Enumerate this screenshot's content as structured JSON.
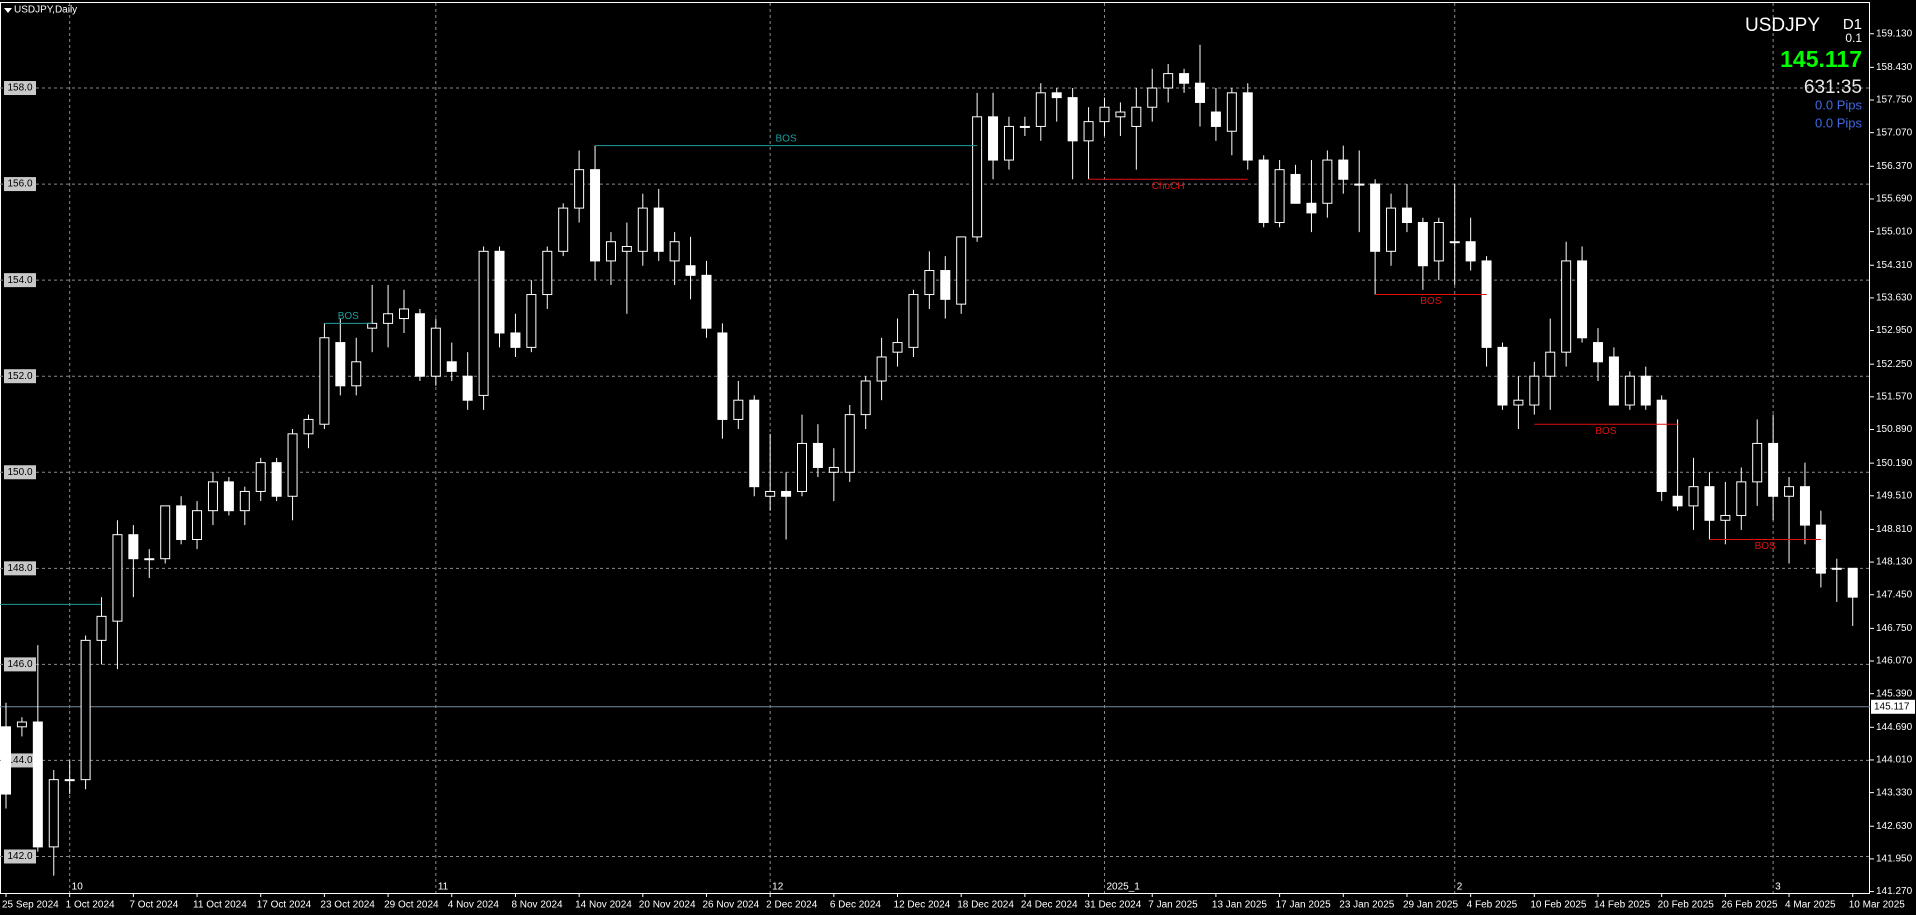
{
  "chart_data": {
    "type": "candlestick",
    "title": "USDJPY,Daily",
    "symbol": "USDJPY",
    "timeframe": "D1",
    "spread": "0.1",
    "current_price": 145.117,
    "timer": "631:35",
    "pips": [
      "0.0 Pips",
      "0.0 Pips"
    ],
    "categories": [
      "25 Sep 2024",
      null,
      null,
      null,
      "1 Oct 2024",
      null,
      null,
      null,
      "7 Oct 2024",
      null,
      null,
      null,
      "11 Oct 2024",
      null,
      null,
      null,
      "17 Oct 2024",
      null,
      null,
      null,
      "23 Oct 2024",
      null,
      null,
      null,
      "29 Oct 2024",
      null,
      null,
      null,
      "4 Nov 2024",
      null,
      null,
      null,
      "8 Nov 2024",
      null,
      null,
      null,
      "14 Nov 2024",
      null,
      null,
      null,
      "20 Nov 2024",
      null,
      null,
      null,
      "26 Nov 2024",
      null,
      null,
      null,
      "2 Dec 2024",
      null,
      null,
      null,
      "6 Dec 2024",
      null,
      null,
      null,
      "12 Dec 2024",
      null,
      null,
      null,
      "18 Dec 2024",
      null,
      null,
      null,
      "24 Dec 2024",
      null,
      null,
      null,
      "31 Dec 2024",
      null,
      null,
      null,
      "7 Jan 2025",
      null,
      null,
      null,
      "13 Jan 2025",
      null,
      null,
      null,
      "17 Jan 2025",
      null,
      null,
      null,
      "23 Jan 2025",
      null,
      null,
      null,
      "29 Jan 2025",
      null,
      null,
      null,
      "4 Feb 2025",
      null,
      null,
      null,
      "10 Feb 2025",
      null,
      null,
      null,
      "14 Feb 2025",
      null,
      null,
      null,
      "20 Feb 2025",
      null,
      null,
      null,
      "26 Feb 2025",
      null,
      null,
      null,
      "4 Mar 2025",
      null,
      null,
      null,
      "10 Mar 2025"
    ],
    "open": [
      144.7,
      144.7,
      144.8,
      142.2,
      143.6,
      143.6,
      146.5,
      146.9,
      148.7,
      148.2,
      148.2,
      149.3,
      148.6,
      149.2,
      149.8,
      149.2,
      149.6,
      150.2,
      149.5,
      150.8,
      151.0,
      152.7,
      151.8,
      153.0,
      153.1,
      153.2,
      153.3,
      152.0,
      152.3,
      152.0,
      151.6,
      154.6,
      152.9,
      152.6,
      153.7,
      154.6,
      155.5,
      156.3,
      154.4,
      154.6,
      154.6,
      155.5,
      154.4,
      154.3,
      154.1,
      152.9,
      151.1,
      151.5,
      149.5,
      149.6,
      149.6,
      150.6,
      150.0,
      150.0,
      151.2,
      151.9,
      152.5,
      152.6,
      153.7,
      154.2,
      153.5,
      154.9,
      157.4,
      156.5,
      157.2,
      157.2,
      157.9,
      157.8,
      156.9,
      157.3,
      157.4,
      157.2,
      157.6,
      158.0,
      158.3,
      158.1,
      157.5,
      157.1,
      157.9,
      156.5,
      155.2,
      156.2,
      155.6,
      155.6,
      156.5,
      156.0,
      156.0,
      154.6,
      155.5,
      155.2,
      154.4,
      154.8,
      154.8,
      154.4,
      152.6,
      151.4,
      151.4,
      152.0,
      152.5,
      154.4,
      152.7,
      152.4,
      151.4,
      152.0,
      151.5,
      149.5,
      149.3,
      149.7,
      149.0,
      149.1,
      149.8,
      150.6,
      149.5,
      149.7,
      148.9,
      148.0,
      148.0
    ],
    "high": [
      145.2,
      144.9,
      146.4,
      143.8,
      144.0,
      146.6,
      147.4,
      149.0,
      148.9,
      148.4,
      149.3,
      149.5,
      149.4,
      150.0,
      149.9,
      149.7,
      150.3,
      150.3,
      150.9,
      151.2,
      153.1,
      153.2,
      152.8,
      153.9,
      153.9,
      153.8,
      153.4,
      153.2,
      152.7,
      152.5,
      154.7,
      154.7,
      153.3,
      154.0,
      154.7,
      155.6,
      156.7,
      156.8,
      155.0,
      155.2,
      155.8,
      155.9,
      155.0,
      154.9,
      154.4,
      153.1,
      151.9,
      151.6,
      150.8,
      150.0,
      151.2,
      151.0,
      150.5,
      151.4,
      152.0,
      152.8,
      153.2,
      153.8,
      154.6,
      154.5,
      154.9,
      157.9,
      157.9,
      157.4,
      157.4,
      158.1,
      158.0,
      158.0,
      157.6,
      157.8,
      157.7,
      158.0,
      158.4,
      158.5,
      158.4,
      158.9,
      158.0,
      158.0,
      158.1,
      156.6,
      156.5,
      156.4,
      156.5,
      156.7,
      156.8,
      156.7,
      156.1,
      155.8,
      156.0,
      155.3,
      155.3,
      156.0,
      155.3,
      154.5,
      152.7,
      152.0,
      152.3,
      153.2,
      154.8,
      154.7,
      153.0,
      152.6,
      152.1,
      152.2,
      151.6,
      151.1,
      150.3,
      150.0,
      149.8,
      150.1,
      151.1,
      151.2,
      149.9,
      150.2,
      149.2,
      148.2,
      148.0
    ],
    "low": [
      143.0,
      144.5,
      142.1,
      141.6,
      143.3,
      143.4,
      146.0,
      145.9,
      147.4,
      147.8,
      148.1,
      148.5,
      148.4,
      148.9,
      149.1,
      148.9,
      149.4,
      149.4,
      149.0,
      150.5,
      150.9,
      151.6,
      151.6,
      152.5,
      152.6,
      152.9,
      151.9,
      151.8,
      151.9,
      151.3,
      151.3,
      152.6,
      152.4,
      152.5,
      153.4,
      154.5,
      155.2,
      154.0,
      153.9,
      153.3,
      154.3,
      154.4,
      153.9,
      153.6,
      152.8,
      150.7,
      150.9,
      149.5,
      149.2,
      148.6,
      149.5,
      149.9,
      149.4,
      149.8,
      150.9,
      151.5,
      152.2,
      152.4,
      153.4,
      153.2,
      153.3,
      154.8,
      156.1,
      156.3,
      157.0,
      156.9,
      157.3,
      156.1,
      156.1,
      157.0,
      157.0,
      156.3,
      157.3,
      157.7,
      157.9,
      157.2,
      156.9,
      156.6,
      156.3,
      155.1,
      155.1,
      155.6,
      155.0,
      155.3,
      155.8,
      155.0,
      153.7,
      154.3,
      155.0,
      153.8,
      154.0,
      153.9,
      154.2,
      152.2,
      151.3,
      150.9,
      151.2,
      151.3,
      152.2,
      152.7,
      151.9,
      151.4,
      151.3,
      151.3,
      149.4,
      149.2,
      148.8,
      148.6,
      148.5,
      148.8,
      149.3,
      149.0,
      148.1,
      148.5,
      147.6,
      147.3,
      146.8
    ],
    "close": [
      143.3,
      144.8,
      142.2,
      143.6,
      143.6,
      146.5,
      147.0,
      148.7,
      148.2,
      148.2,
      149.3,
      148.6,
      149.2,
      149.8,
      149.2,
      149.6,
      150.2,
      149.5,
      150.8,
      151.1,
      152.8,
      151.8,
      152.3,
      153.1,
      153.3,
      153.4,
      152.0,
      153.0,
      152.1,
      151.5,
      154.6,
      152.9,
      152.6,
      153.7,
      154.6,
      155.5,
      156.3,
      154.4,
      154.8,
      154.7,
      155.5,
      154.6,
      154.8,
      154.1,
      153.0,
      151.1,
      151.5,
      149.7,
      149.6,
      149.5,
      150.6,
      150.1,
      150.1,
      151.2,
      151.9,
      152.4,
      152.7,
      153.7,
      154.2,
      153.6,
      154.9,
      157.4,
      156.5,
      157.2,
      157.2,
      157.9,
      157.8,
      156.9,
      157.3,
      157.6,
      157.5,
      157.6,
      158.0,
      158.3,
      158.1,
      157.7,
      157.2,
      157.9,
      156.5,
      155.2,
      156.3,
      155.6,
      155.4,
      156.5,
      156.1,
      156.0,
      154.6,
      155.5,
      155.2,
      154.3,
      155.2,
      154.8,
      154.4,
      152.6,
      151.4,
      151.5,
      152.0,
      152.5,
      154.4,
      152.8,
      152.3,
      151.4,
      152.0,
      151.4,
      149.6,
      149.3,
      149.7,
      149.0,
      149.1,
      149.8,
      150.6,
      149.5,
      149.7,
      148.9,
      147.9,
      148.0,
      147.4
    ],
    "up_color": "#000000",
    "down_color": "#ffffff",
    "wick_color": "#ffffff",
    "ylim": [
      141.24,
      159.77
    ],
    "yticks": [
      {
        "value": 159.13,
        "label": "159.130"
      },
      {
        "value": 158.43,
        "label": "158.430"
      },
      {
        "value": 157.75,
        "label": "157.750"
      },
      {
        "value": 157.07,
        "label": "157.070"
      },
      {
        "value": 156.37,
        "label": "156.370"
      },
      {
        "value": 155.69,
        "label": "155.690"
      },
      {
        "value": 155.01,
        "label": "155.010"
      },
      {
        "value": 154.31,
        "label": "154.310"
      },
      {
        "value": 153.63,
        "label": "153.630"
      },
      {
        "value": 152.95,
        "label": "152.950"
      },
      {
        "value": 152.25,
        "label": "152.250"
      },
      {
        "value": 151.57,
        "label": "151.570"
      },
      {
        "value": 150.89,
        "label": "150.890"
      },
      {
        "value": 150.19,
        "label": "150.190"
      },
      {
        "value": 149.51,
        "label": "149.510"
      },
      {
        "value": 148.81,
        "label": "148.810"
      },
      {
        "value": 148.13,
        "label": "148.130"
      },
      {
        "value": 147.45,
        "label": "147.450"
      },
      {
        "value": 146.75,
        "label": "146.750"
      },
      {
        "value": 146.07,
        "label": "146.070"
      },
      {
        "value": 145.39,
        "label": "145.390"
      },
      {
        "value": 144.69,
        "label": "144.690"
      },
      {
        "value": 144.01,
        "label": "144.010"
      },
      {
        "value": 143.33,
        "label": "143.330"
      },
      {
        "value": 142.63,
        "label": "142.630"
      },
      {
        "value": 141.95,
        "label": "141.950"
      },
      {
        "value": 141.27,
        "label": "141.270"
      }
    ],
    "levels": [
      {
        "value": 158,
        "label": "158.0"
      },
      {
        "value": 156,
        "label": "156.0"
      },
      {
        "value": 154,
        "label": "154.0"
      },
      {
        "value": 152,
        "label": "152.0"
      },
      {
        "value": 150,
        "label": "150.0"
      },
      {
        "value": 148,
        "label": "148.0"
      },
      {
        "value": 146,
        "label": "146.0"
      },
      {
        "value": 144,
        "label": "144.0"
      },
      {
        "value": 142,
        "label": "142.0"
      }
    ],
    "period_separators": [
      {
        "label": "10",
        "at": 4
      },
      {
        "label": "11",
        "at": 27
      },
      {
        "label": "12",
        "at": 48
      },
      {
        "label": "2025_1",
        "at": 69
      },
      {
        "label": "2",
        "at": 91
      },
      {
        "label": "3",
        "at": 111
      }
    ],
    "annotations": [
      {
        "label": "BOS",
        "price": 153.1,
        "start": 20,
        "end": 23,
        "color": "#1e9e9e"
      },
      {
        "label": "BOS",
        "price": 156.8,
        "start": 37,
        "end": 61,
        "color": "#1e9e9e"
      },
      {
        "label": "ChoCH",
        "price": 156.1,
        "start": 68,
        "end": 78,
        "color": "#e01010"
      },
      {
        "label": "BOS",
        "price": 153.7,
        "start": 86,
        "end": 93,
        "color": "#e01010"
      },
      {
        "label": "BOS",
        "price": 151.0,
        "start": 96,
        "end": 105,
        "color": "#e01010"
      },
      {
        "label": "BOS",
        "price": 148.6,
        "start": 107,
        "end": 114,
        "color": "#e01010"
      }
    ],
    "lines": [
      {
        "price": 147.25,
        "start": 0,
        "end": 6,
        "color": "#1e9e9e"
      }
    ],
    "grid": true
  }
}
